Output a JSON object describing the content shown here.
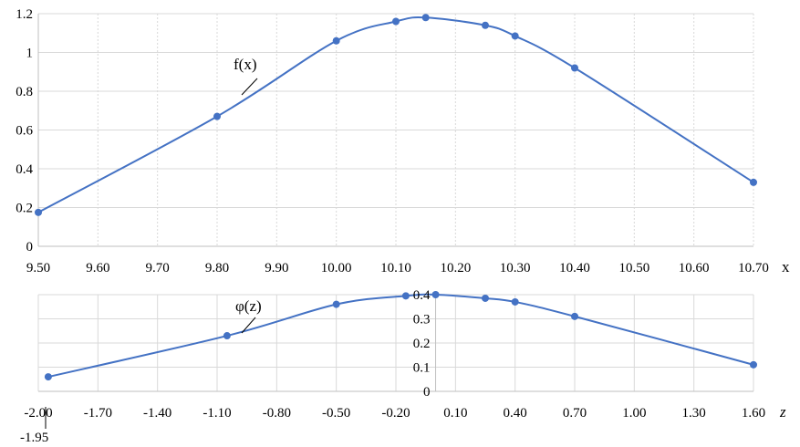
{
  "chart_data": [
    {
      "type": "line",
      "series": [
        {
          "name": "f(x)",
          "x": [
            9.5,
            9.8,
            10.0,
            10.1,
            10.15,
            10.25,
            10.3,
            10.4,
            10.7
          ],
          "y": [
            0.175,
            0.67,
            1.06,
            1.16,
            1.18,
            1.14,
            1.085,
            0.92,
            0.33
          ]
        }
      ],
      "x_ticks": [
        "9.50",
        "9.60",
        "9.70",
        "9.80",
        "9.90",
        "10.00",
        "10.10",
        "10.20",
        "10.30",
        "10.40",
        "10.50",
        "10.60",
        "10.70"
      ],
      "y_ticks": [
        "0",
        "0.2",
        "0.4",
        "0.6",
        "0.8",
        "1",
        "1.2"
      ],
      "xlabel": "x",
      "ylabel": "",
      "xlim": [
        9.5,
        10.7
      ],
      "ylim": [
        0,
        1.2
      ],
      "grid": true,
      "color": "#4472c4"
    },
    {
      "type": "line",
      "series": [
        {
          "name": "φ(z)",
          "x": [
            -1.95,
            -1.05,
            -0.5,
            -0.15,
            0.0,
            0.25,
            0.4,
            0.7,
            1.6
          ],
          "y": [
            0.06,
            0.23,
            0.36,
            0.395,
            0.4,
            0.385,
            0.37,
            0.31,
            0.11
          ]
        }
      ],
      "x_ticks": [
        "-2.00",
        "-1.70",
        "-1.40",
        "-1.10",
        "-0.80",
        "-0.50",
        "-0.20",
        "0.10",
        "0.40",
        "0.70",
        "1.00",
        "1.30",
        "1.60"
      ],
      "y_ticks": [
        "0",
        "0.1",
        "0.2",
        "0.3",
        "0.4"
      ],
      "xlabel": "z",
      "ylabel": "",
      "xlim": [
        -2.0,
        1.6
      ],
      "ylim": [
        0,
        0.4
      ],
      "grid": true,
      "color": "#4472c4",
      "annotation": "-1.95"
    }
  ]
}
